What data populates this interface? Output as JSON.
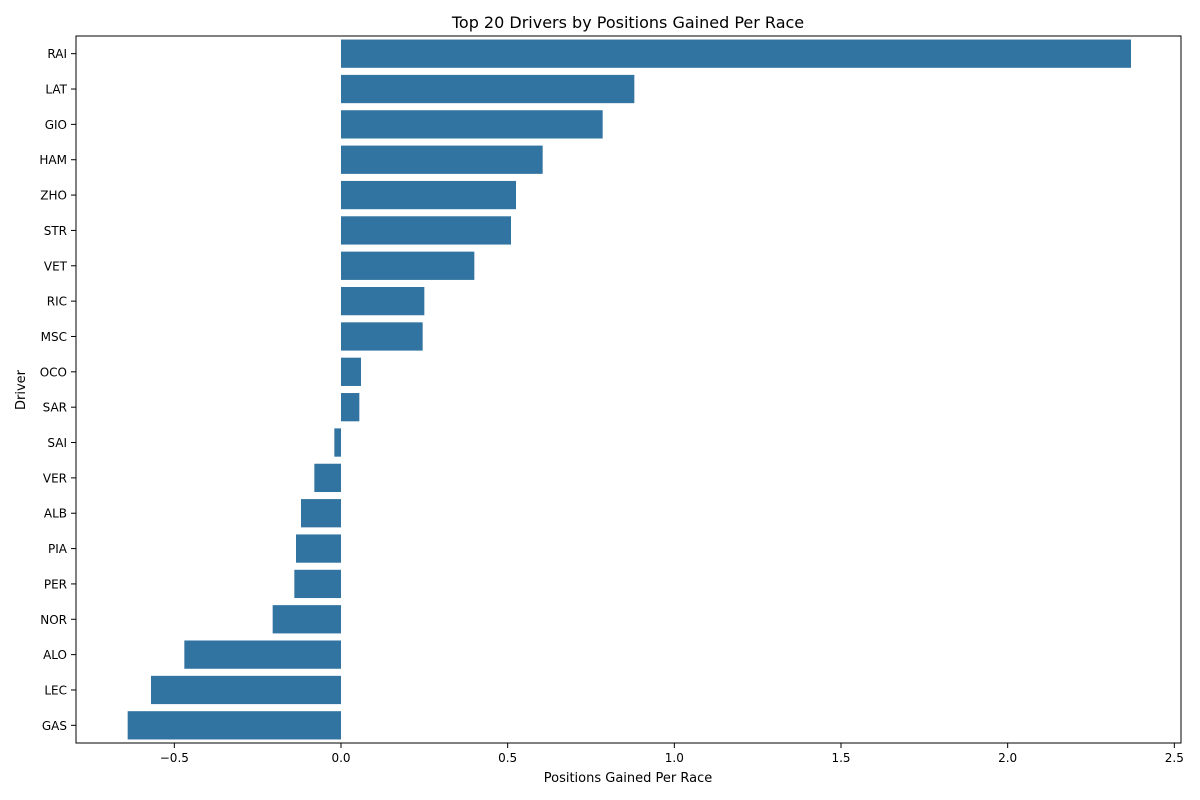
{
  "chart_data": {
    "type": "bar",
    "orientation": "horizontal",
    "title": "Top 20 Drivers by Positions Gained Per Race",
    "xlabel": "Positions Gained Per Race",
    "ylabel": "Driver",
    "categories": [
      "RAI",
      "LAT",
      "GIO",
      "HAM",
      "ZHO",
      "STR",
      "VET",
      "RIC",
      "MSC",
      "OCO",
      "SAR",
      "SAI",
      "VER",
      "ALB",
      "PIA",
      "PER",
      "NOR",
      "ALO",
      "LEC",
      "GAS"
    ],
    "values": [
      2.37,
      0.88,
      0.785,
      0.605,
      0.525,
      0.51,
      0.4,
      0.25,
      0.245,
      0.06,
      0.055,
      -0.02,
      -0.08,
      -0.12,
      -0.135,
      -0.14,
      -0.205,
      -0.47,
      -0.57,
      -0.64
    ],
    "xlim": [
      -0.795,
      2.52
    ],
    "xticks": [
      -0.5,
      0.0,
      0.5,
      1.0,
      1.5,
      2.0,
      2.5
    ],
    "xtick_labels": [
      "−0.5",
      "0.0",
      "0.5",
      "1.0",
      "1.5",
      "2.0",
      "2.5"
    ],
    "grid": false,
    "bar_color": "#3274a1"
  }
}
